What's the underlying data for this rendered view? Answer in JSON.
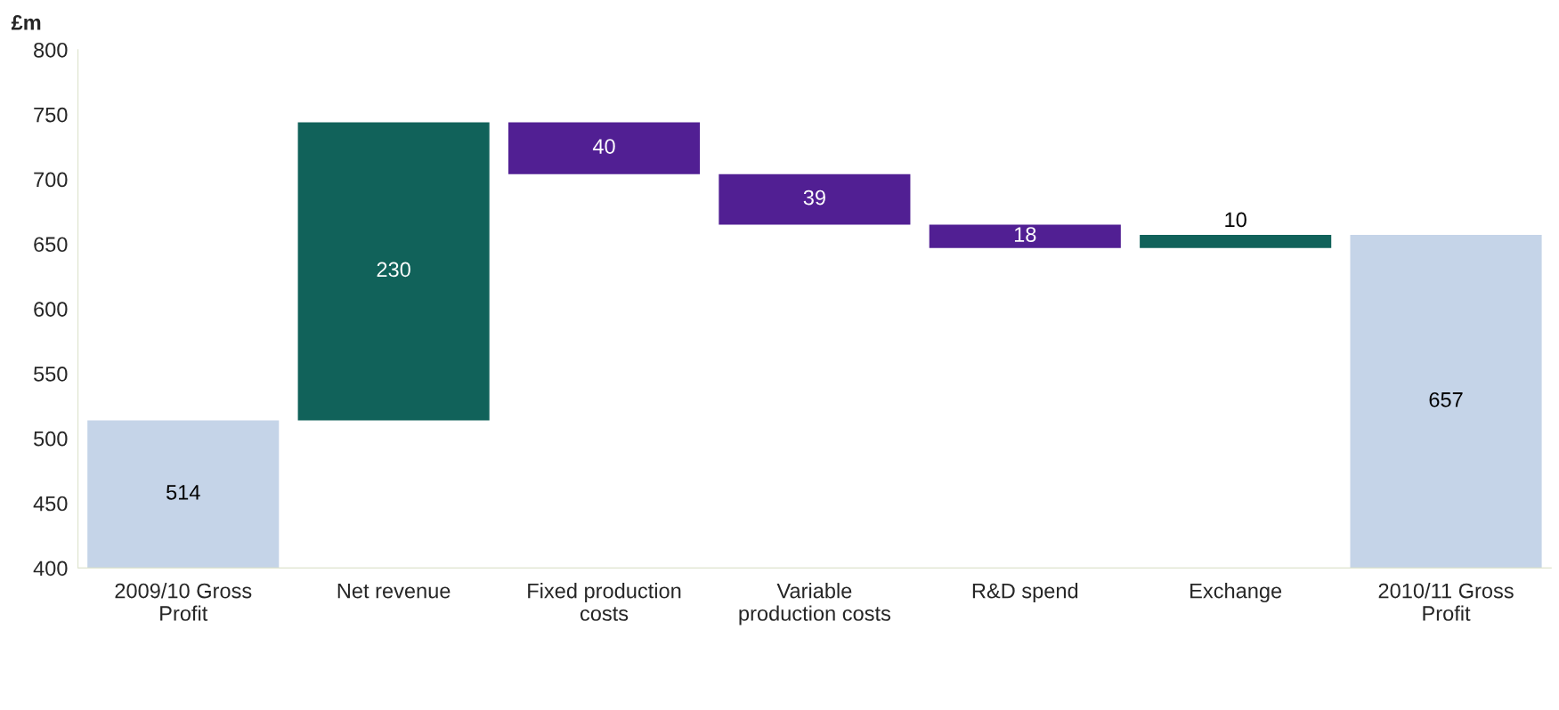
{
  "chart_data": {
    "type": "bar",
    "ylabel": "£m",
    "categories": [
      "2009/10 Gross\nProfit",
      "Net revenue",
      "Fixed production\ncosts",
      "Variable\nproduction costs",
      "R&D spend",
      "Exchange",
      "2010/11 Gross\nProfit"
    ],
    "values": [
      514,
      230,
      -40,
      -39,
      -18,
      10,
      657
    ],
    "base": [
      0,
      514,
      744,
      704,
      665,
      647,
      0
    ],
    "colors": [
      "#c5d4e8",
      "#11625a",
      "#511f93",
      "#511f93",
      "#511f93",
      "#11625a",
      "#c5d4e8"
    ],
    "value_labels": [
      "514",
      "230",
      "40",
      "39",
      "18",
      "10",
      "657"
    ],
    "ylim": [
      400,
      800
    ],
    "yticks": [
      400,
      450,
      500,
      550,
      600,
      650,
      700,
      750,
      800
    ],
    "grid": false,
    "legend": false
  }
}
